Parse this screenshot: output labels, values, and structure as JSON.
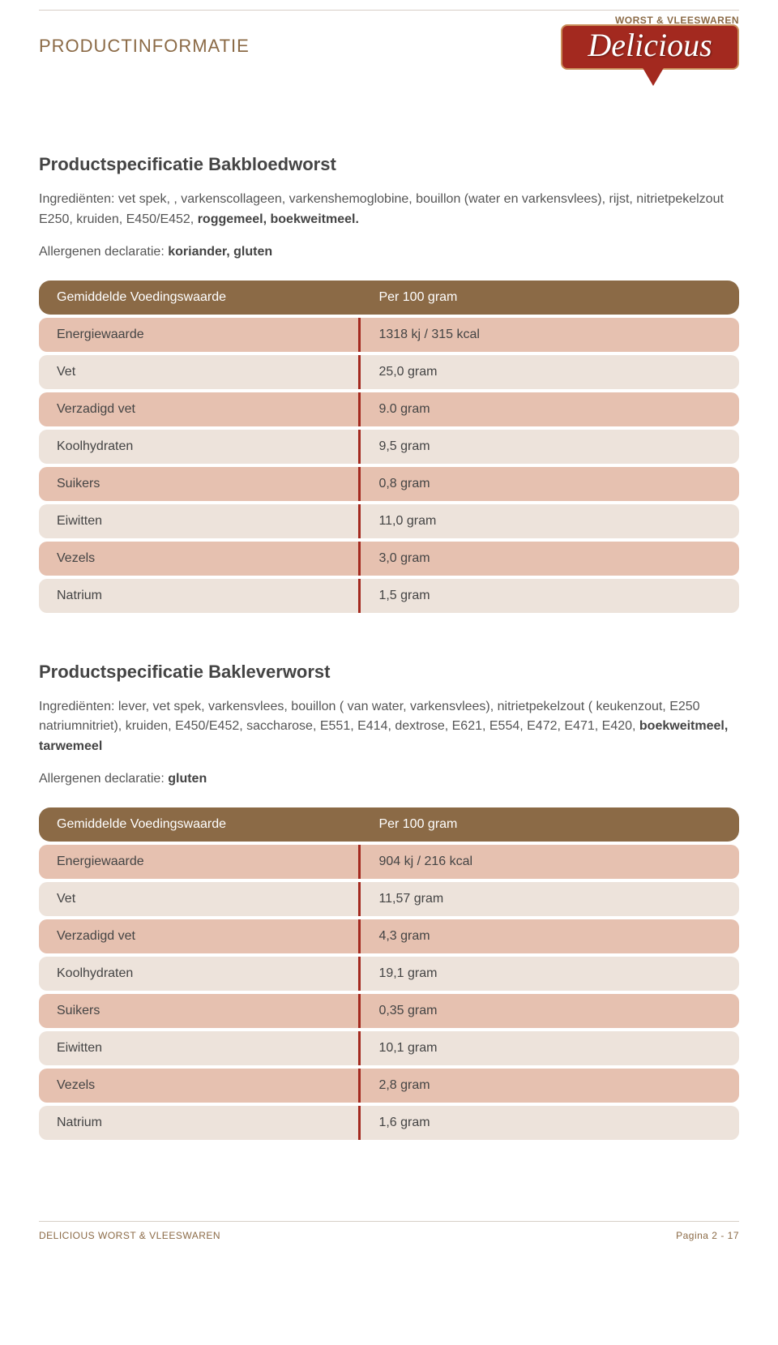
{
  "page": {
    "topRightLabel": "WORST & VLEESWAREN",
    "title": "PRODUCTINFORMATIE",
    "logoText": "Delicious",
    "footerLeft": "DELICIOUS WORST & VLEESWAREN",
    "footerRight": "Pagina 2 - 17"
  },
  "colors": {
    "brown": "#8b6a46",
    "red": "#a3291f",
    "rowDark": "#e6c1b0",
    "rowLight": "#ede3db"
  },
  "product1": {
    "titlePrefix": "Productspecificatie ",
    "titleBold": "Bakbloedworst",
    "ingLabel": "Ingrediënten: ",
    "ingText": "vet spek, , varkenscollageen, varkenshemoglobine, bouillon (water en varkensvlees), rijst, nitrietpekelzout E250, kruiden, E450/E452, ",
    "ingBold": "roggemeel, boekweitmeel.",
    "allergenLabel": "Allergenen declaratie: ",
    "allergenBold": "koriander, gluten",
    "table": {
      "headerLeft": "Gemiddelde Voedingswaarde",
      "headerRight": "Per 100 gram",
      "rows": [
        {
          "label": "Energiewaarde",
          "value": "1318 kj / 315 kcal",
          "shade": "dark"
        },
        {
          "label": "Vet",
          "value": "25,0 gram",
          "shade": "light"
        },
        {
          "label": "Verzadigd vet",
          "value": "9.0 gram",
          "shade": "dark"
        },
        {
          "label": "Koolhydraten",
          "value": "9,5 gram",
          "shade": "light"
        },
        {
          "label": "Suikers",
          "value": "0,8 gram",
          "shade": "dark"
        },
        {
          "label": "Eiwitten",
          "value": "11,0 gram",
          "shade": "light"
        },
        {
          "label": "Vezels",
          "value": "3,0 gram",
          "shade": "dark"
        },
        {
          "label": "Natrium",
          "value": "1,5 gram",
          "shade": "light"
        }
      ]
    }
  },
  "product2": {
    "titlePrefix": "Productspecificatie ",
    "titleBold": "Bakleverworst",
    "ingLabel": "Ingrediënten: ",
    "ingText": "lever, vet spek, varkensvlees, bouillon ( van water, varkensvlees), nitrietpekelzout ( keukenzout, E250 natriumnitriet), kruiden, E450/E452, saccharose, E551, E414, dextrose, E621, E554, E472, E471, E420, ",
    "ingBold": "boekweitmeel, tarwemeel",
    "allergenLabel": "Allergenen declaratie: ",
    "allergenBold": "gluten",
    "table": {
      "headerLeft": "Gemiddelde Voedingswaarde",
      "headerRight": "Per 100 gram",
      "rows": [
        {
          "label": "Energiewaarde",
          "value": "904 kj / 216 kcal",
          "shade": "dark"
        },
        {
          "label": "Vet",
          "value": "11,57 gram",
          "shade": "light"
        },
        {
          "label": "Verzadigd vet",
          "value": "4,3  gram",
          "shade": "dark"
        },
        {
          "label": "Koolhydraten",
          "value": "19,1  gram",
          "shade": "light"
        },
        {
          "label": "Suikers",
          "value": "0,35 gram",
          "shade": "dark"
        },
        {
          "label": "Eiwitten",
          "value": "10,1  gram",
          "shade": "light"
        },
        {
          "label": "Vezels",
          "value": "2,8  gram",
          "shade": "dark"
        },
        {
          "label": "Natrium",
          "value": "1,6  gram",
          "shade": "light"
        }
      ]
    }
  }
}
